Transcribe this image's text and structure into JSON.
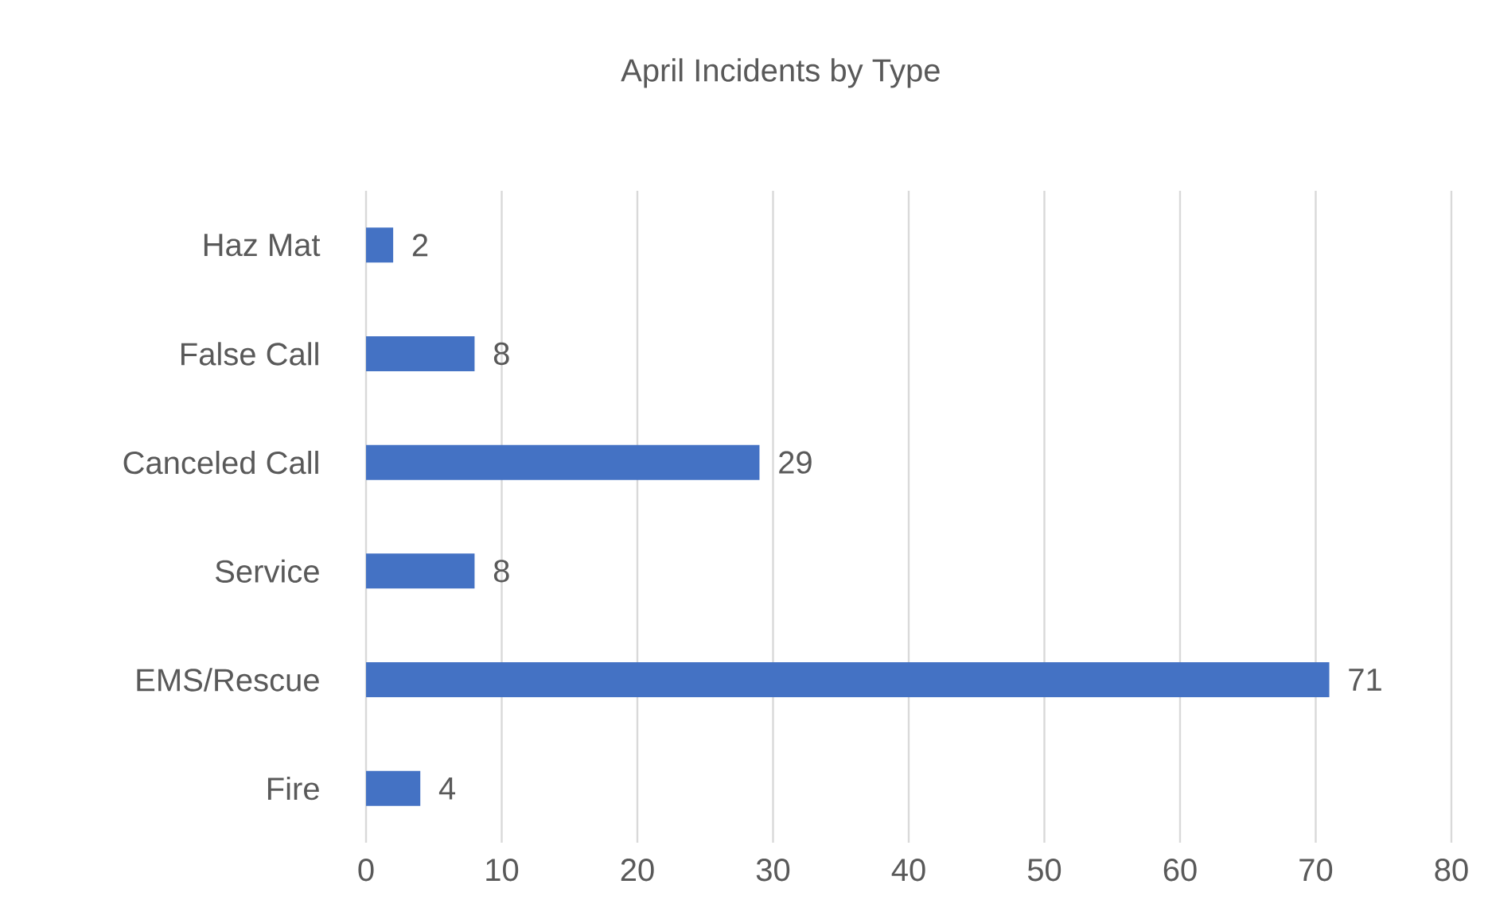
{
  "chart_data": {
    "type": "bar",
    "orientation": "horizontal",
    "title": "April Incidents by Type",
    "categories": [
      "Haz Mat",
      "False Call",
      "Canceled Call",
      "Service",
      "EMS/Rescue",
      "Fire"
    ],
    "values": [
      2,
      8,
      29,
      8,
      71,
      4
    ],
    "color": "#4472c4",
    "xlim": [
      0,
      80
    ],
    "xticks": [
      0,
      10,
      20,
      30,
      40,
      50,
      60,
      70,
      80
    ],
    "grid": "x",
    "data_labels": true
  }
}
